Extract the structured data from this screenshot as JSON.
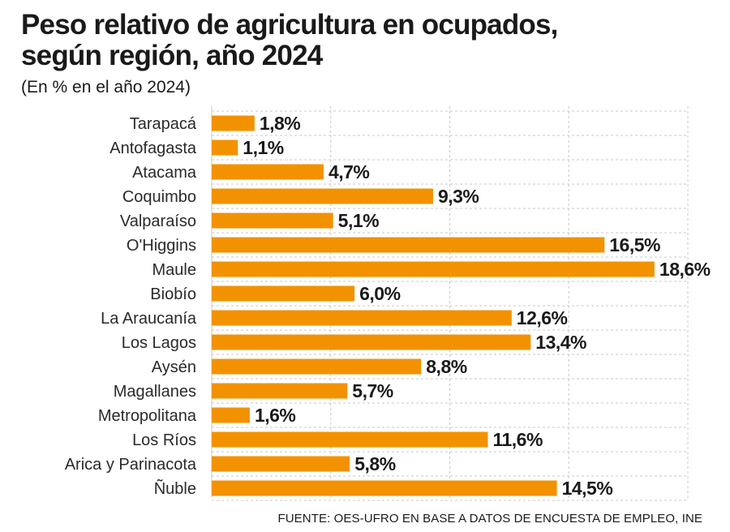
{
  "title": "Peso relativo de agricultura en ocupados, según región, año 2024",
  "subtitle": "(En % en el año 2024)",
  "source": "FUENTE: OES-UFRO EN BASE A DATOS DE ENCUESTA DE EMPLEO, INE",
  "colors": {
    "bar": "#f39200",
    "grid": "#c8c8c8",
    "text": "#1a1a1a"
  },
  "chart_data": {
    "type": "bar",
    "orientation": "horizontal",
    "title": "Peso relativo de agricultura en ocupados, según región, año 2024",
    "subtitle": "(En % en el año 2024)",
    "xlabel": "",
    "ylabel": "",
    "xlim": [
      0,
      20
    ],
    "grid": true,
    "categories": [
      "Tarapacá",
      "Antofagasta",
      "Atacama",
      "Coquimbo",
      "Valparaíso",
      "O'Higgins",
      "Maule",
      "Biobío",
      "La Araucanía",
      "Los Lagos",
      "Aysén",
      "Magallanes",
      "Metropolitana",
      "Los Ríos",
      "Arica y Parinacota",
      "Ñuble"
    ],
    "values": [
      1.8,
      1.1,
      4.7,
      9.3,
      5.1,
      16.5,
      18.6,
      6.0,
      12.6,
      13.4,
      8.8,
      5.7,
      1.6,
      11.6,
      5.8,
      14.5
    ],
    "value_labels": [
      "1,8%",
      "1,1%",
      "4,7%",
      "9,3%",
      "5,1%",
      "16,5%",
      "18,6%",
      "6,0%",
      "12,6%",
      "13,4%",
      "8,8%",
      "5,7%",
      "1,6%",
      "11,6%",
      "5,8%",
      "14,5%"
    ]
  }
}
